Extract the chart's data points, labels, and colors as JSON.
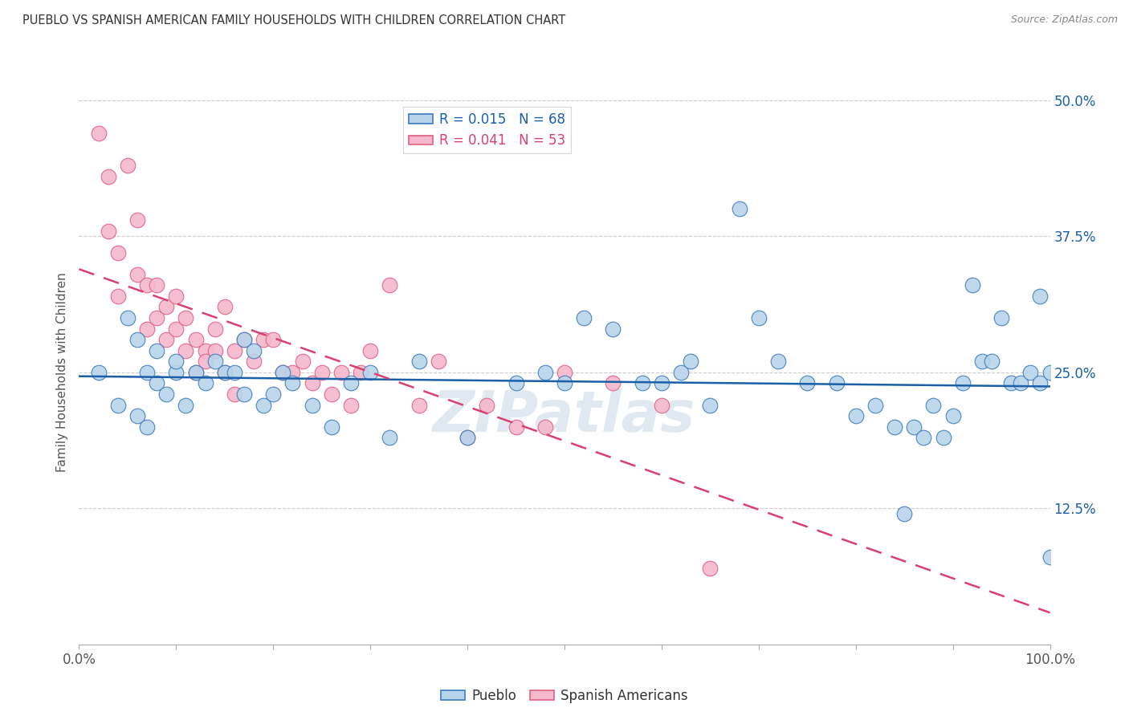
{
  "title": "PUEBLO VS SPANISH AMERICAN FAMILY HOUSEHOLDS WITH CHILDREN CORRELATION CHART",
  "source": "Source: ZipAtlas.com",
  "ylabel": "Family Households with Children",
  "pueblo_R": 0.015,
  "pueblo_N": 68,
  "spanish_R": 0.041,
  "spanish_N": 53,
  "pueblo_color": "#b8d4ea",
  "pueblo_edge_color": "#3a7abf",
  "pueblo_line_color": "#1a5fa8",
  "spanish_color": "#f5b8cc",
  "spanish_edge_color": "#e06080",
  "spanish_line_color": "#d94070",
  "watermark": "ZIPatlas",
  "xlim": [
    0,
    1.0
  ],
  "ylim": [
    0,
    0.5
  ],
  "yticks": [
    0.125,
    0.25,
    0.375,
    0.5
  ],
  "ytick_labels": [
    "12.5%",
    "25.0%",
    "37.5%",
    "50.0%"
  ],
  "pueblo_x": [
    0.02,
    0.04,
    0.05,
    0.06,
    0.06,
    0.07,
    0.07,
    0.08,
    0.08,
    0.09,
    0.1,
    0.1,
    0.11,
    0.12,
    0.13,
    0.14,
    0.15,
    0.16,
    0.17,
    0.17,
    0.18,
    0.19,
    0.2,
    0.21,
    0.22,
    0.24,
    0.26,
    0.28,
    0.3,
    0.32,
    0.35,
    0.4,
    0.45,
    0.48,
    0.5,
    0.52,
    0.55,
    0.58,
    0.6,
    0.62,
    0.63,
    0.65,
    0.68,
    0.7,
    0.72,
    0.75,
    0.78,
    0.8,
    0.82,
    0.84,
    0.85,
    0.86,
    0.87,
    0.88,
    0.89,
    0.9,
    0.91,
    0.92,
    0.93,
    0.94,
    0.95,
    0.96,
    0.97,
    0.98,
    0.99,
    0.99,
    1.0,
    1.0
  ],
  "pueblo_y": [
    0.25,
    0.22,
    0.3,
    0.28,
    0.21,
    0.25,
    0.2,
    0.24,
    0.27,
    0.23,
    0.25,
    0.26,
    0.22,
    0.25,
    0.24,
    0.26,
    0.25,
    0.25,
    0.28,
    0.23,
    0.27,
    0.22,
    0.23,
    0.25,
    0.24,
    0.22,
    0.2,
    0.24,
    0.25,
    0.19,
    0.26,
    0.19,
    0.24,
    0.25,
    0.24,
    0.3,
    0.29,
    0.24,
    0.24,
    0.25,
    0.26,
    0.22,
    0.4,
    0.3,
    0.26,
    0.24,
    0.24,
    0.21,
    0.22,
    0.2,
    0.12,
    0.2,
    0.19,
    0.22,
    0.19,
    0.21,
    0.24,
    0.33,
    0.26,
    0.26,
    0.3,
    0.24,
    0.24,
    0.25,
    0.24,
    0.32,
    0.25,
    0.08
  ],
  "spanish_x": [
    0.02,
    0.03,
    0.03,
    0.04,
    0.04,
    0.05,
    0.06,
    0.06,
    0.07,
    0.07,
    0.08,
    0.08,
    0.09,
    0.09,
    0.1,
    0.1,
    0.11,
    0.11,
    0.12,
    0.12,
    0.13,
    0.13,
    0.14,
    0.14,
    0.15,
    0.15,
    0.16,
    0.16,
    0.17,
    0.18,
    0.19,
    0.2,
    0.21,
    0.22,
    0.23,
    0.24,
    0.25,
    0.26,
    0.27,
    0.28,
    0.29,
    0.3,
    0.32,
    0.35,
    0.37,
    0.4,
    0.42,
    0.45,
    0.48,
    0.5,
    0.55,
    0.6,
    0.65
  ],
  "spanish_y": [
    0.47,
    0.43,
    0.38,
    0.36,
    0.32,
    0.44,
    0.34,
    0.39,
    0.33,
    0.29,
    0.3,
    0.33,
    0.31,
    0.28,
    0.29,
    0.32,
    0.27,
    0.3,
    0.28,
    0.25,
    0.27,
    0.26,
    0.29,
    0.27,
    0.31,
    0.25,
    0.27,
    0.23,
    0.28,
    0.26,
    0.28,
    0.28,
    0.25,
    0.25,
    0.26,
    0.24,
    0.25,
    0.23,
    0.25,
    0.22,
    0.25,
    0.27,
    0.33,
    0.22,
    0.26,
    0.19,
    0.22,
    0.2,
    0.2,
    0.25,
    0.24,
    0.22,
    0.07
  ]
}
